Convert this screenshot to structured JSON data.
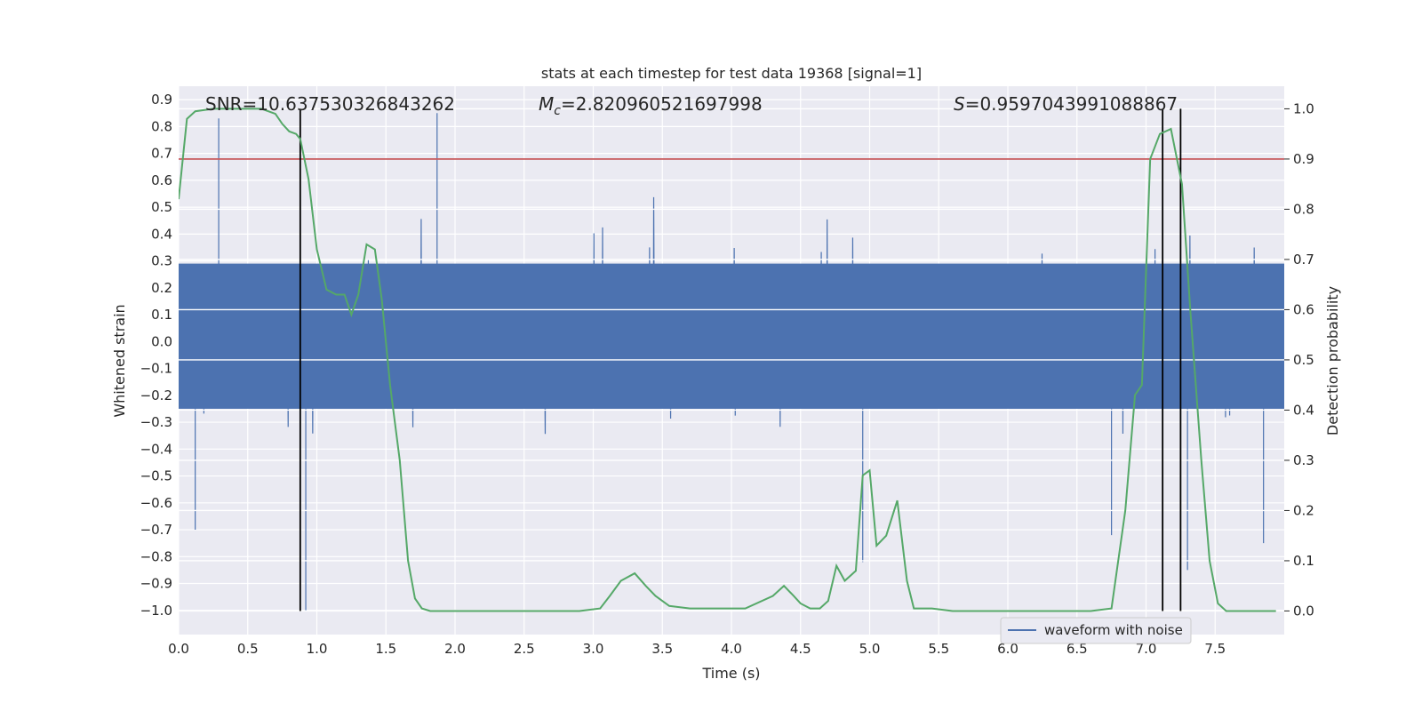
{
  "chart_data": {
    "type": "line",
    "title": "stats at each timestep for test data 19368 [signal=1]",
    "xlabel": "Time (s)",
    "ylabel_left": "Whitened strain",
    "ylabel_right": "Detection probability",
    "xlim": [
      0.0,
      8.0
    ],
    "ylim_left": [
      -1.09,
      0.95
    ],
    "ylim_right": [
      -0.047,
      1.045
    ],
    "x_ticks": [
      "0.0",
      "0.5",
      "1.0",
      "1.5",
      "2.0",
      "2.5",
      "3.0",
      "3.5",
      "4.0",
      "4.5",
      "5.0",
      "5.5",
      "6.0",
      "6.5",
      "7.0",
      "7.5"
    ],
    "y_left_ticks": [
      "0.9",
      "0.8",
      "0.7",
      "0.6",
      "0.5",
      "0.4",
      "0.3",
      "0.2",
      "0.1",
      "0.0",
      "−0.1",
      "−0.2",
      "−0.3",
      "−0.4",
      "−0.5",
      "−0.6",
      "−0.7",
      "−0.8",
      "−0.9",
      "−1.0"
    ],
    "y_right_ticks": [
      "1.0",
      "0.9",
      "0.8",
      "0.7",
      "0.6",
      "0.5",
      "0.4",
      "0.3",
      "0.2",
      "0.1",
      "0.0"
    ],
    "grid": true,
    "legend_position": "lower-right",
    "annotations": {
      "snr": "SNR=10.637530326843262",
      "mc_symbol": "M",
      "mc_sub": "c",
      "mc_value": "=2.820960521697998",
      "s_symbol": "S",
      "s_value": "=0.9597043991088867"
    },
    "threshold_line": {
      "y_right": 0.9,
      "color": "#c44e52"
    },
    "vertical_lines_x": [
      0.88,
      7.12,
      7.25
    ],
    "series": [
      {
        "name": "waveform with noise",
        "axis": "left",
        "color": "#4c72b0",
        "description_values": {
          "duration_s": 8.0,
          "core_band": [
            -0.25,
            0.29
          ],
          "peaks": [
            [
              0.29,
              0.83
            ],
            [
              0.92,
              -1.0
            ],
            [
              1.87,
              0.85
            ],
            [
              0.88,
              -0.67
            ],
            [
              0.12,
              -0.7
            ],
            [
              4.95,
              -0.82
            ],
            [
              6.75,
              -0.72
            ],
            [
              7.3,
              -0.85
            ],
            [
              7.85,
              -0.75
            ]
          ]
        }
      },
      {
        "name": "detection probability",
        "axis": "right",
        "color": "#55a868",
        "x": [
          0.0,
          0.06,
          0.12,
          0.25,
          0.5,
          0.6,
          0.7,
          0.75,
          0.8,
          0.85,
          0.88,
          0.94,
          1.0,
          1.07,
          1.14,
          1.2,
          1.25,
          1.3,
          1.36,
          1.42,
          1.47,
          1.53,
          1.6,
          1.66,
          1.71,
          1.76,
          1.82,
          1.9,
          2.1,
          2.3,
          2.6,
          2.9,
          3.05,
          3.12,
          3.2,
          3.3,
          3.38,
          3.45,
          3.55,
          3.7,
          3.9,
          4.1,
          4.3,
          4.38,
          4.45,
          4.5,
          4.57,
          4.64,
          4.7,
          4.76,
          4.82,
          4.9,
          4.95,
          5.0,
          5.05,
          5.12,
          5.2,
          5.27,
          5.32,
          5.45,
          5.6,
          5.8,
          6.1,
          6.4,
          6.6,
          6.75,
          6.85,
          6.92,
          6.97,
          7.03,
          7.1,
          7.18,
          7.26,
          7.32,
          7.4,
          7.46,
          7.52,
          7.58,
          7.65,
          7.72,
          7.94
        ],
        "values": [
          0.82,
          0.98,
          0.995,
          1.0,
          1.0,
          1.0,
          0.99,
          0.97,
          0.955,
          0.95,
          0.94,
          0.86,
          0.72,
          0.64,
          0.63,
          0.63,
          0.59,
          0.63,
          0.73,
          0.72,
          0.62,
          0.45,
          0.3,
          0.1,
          0.025,
          0.005,
          0.0,
          0.0,
          0.0,
          0.0,
          0.0,
          0.0,
          0.005,
          0.03,
          0.06,
          0.075,
          0.05,
          0.03,
          0.01,
          0.005,
          0.005,
          0.005,
          0.03,
          0.05,
          0.03,
          0.015,
          0.005,
          0.005,
          0.02,
          0.09,
          0.06,
          0.08,
          0.27,
          0.28,
          0.13,
          0.15,
          0.22,
          0.06,
          0.005,
          0.005,
          0.0,
          0.0,
          0.0,
          0.0,
          0.0,
          0.005,
          0.2,
          0.43,
          0.45,
          0.9,
          0.95,
          0.96,
          0.85,
          0.6,
          0.3,
          0.1,
          0.015,
          0.0,
          0.0,
          0.0,
          0.0
        ]
      }
    ]
  }
}
